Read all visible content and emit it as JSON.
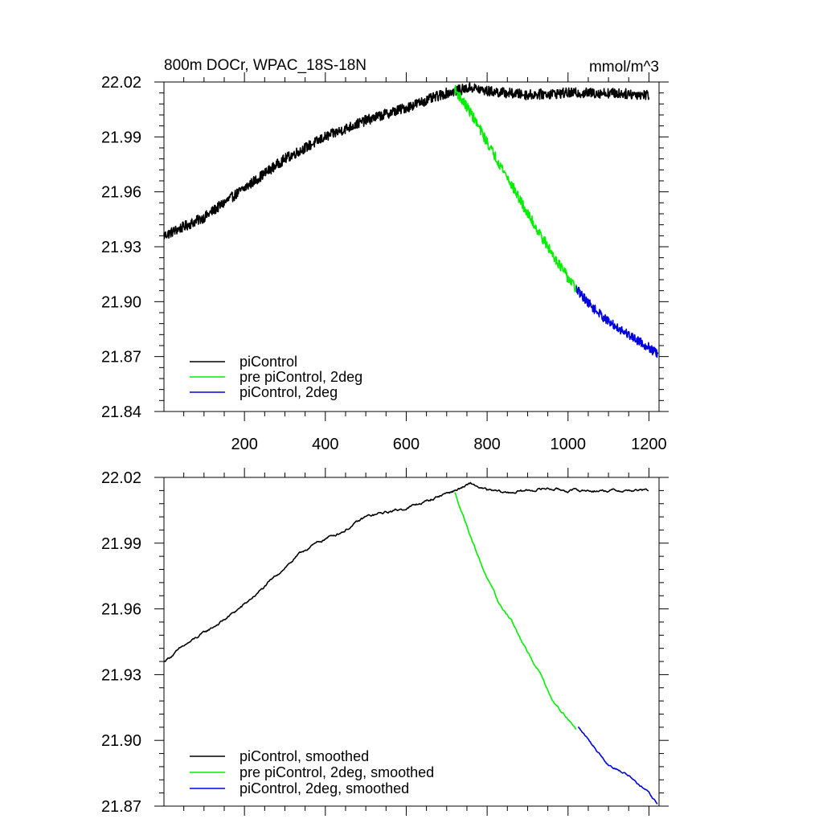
{
  "chart_data": [
    {
      "type": "line",
      "title": "800m DOCr, WPAC_18S-18N",
      "units": "mmol/m^3",
      "xlim": [
        1,
        1225
      ],
      "ylim": [
        21.84,
        22.02
      ],
      "xticks": [
        200,
        400,
        600,
        800,
        1000,
        1200
      ],
      "yticks": [
        21.84,
        21.87,
        21.9,
        21.93,
        21.96,
        21.99,
        22.02
      ],
      "ytick_labels": [
        "21.84",
        "21.87",
        "21.90",
        "21.93",
        "21.96",
        "21.99",
        "22.02"
      ],
      "series": [
        {
          "name": "piControl",
          "color": "#000000",
          "x_range": [
            1,
            1200
          ],
          "anchors": [
            [
              1,
              21.936
            ],
            [
              100,
              21.946
            ],
            [
              200,
              21.962
            ],
            [
              300,
              21.978
            ],
            [
              400,
              21.99
            ],
            [
              500,
              21.999
            ],
            [
              600,
              22.006
            ],
            [
              700,
              22.014
            ],
            [
              760,
              22.017
            ],
            [
              800,
              22.015
            ],
            [
              900,
              22.013
            ],
            [
              1000,
              22.014
            ],
            [
              1100,
              22.014
            ],
            [
              1200,
              22.013
            ]
          ],
          "noise": 0.0028
        },
        {
          "name": "pre piControl, 2deg",
          "color": "#00ee00",
          "x_range": [
            720,
            1020
          ],
          "anchors": [
            [
              720,
              22.016
            ],
            [
              760,
              22.003
            ],
            [
              800,
              21.987
            ],
            [
              850,
              21.968
            ],
            [
              900,
              21.948
            ],
            [
              950,
              21.93
            ],
            [
              1000,
              21.913
            ],
            [
              1020,
              21.907
            ]
          ],
          "noise": 0.0028
        },
        {
          "name": "piControl, 2deg",
          "color": "#0000dd",
          "x_range": [
            1020,
            1222
          ],
          "anchors": [
            [
              1020,
              21.907
            ],
            [
              1060,
              21.897
            ],
            [
              1100,
              21.889
            ],
            [
              1150,
              21.882
            ],
            [
              1200,
              21.875
            ],
            [
              1222,
              21.871
            ]
          ],
          "noise": 0.0025
        }
      ],
      "legend": {
        "position": "bottom-left",
        "entries": [
          {
            "label": "piControl",
            "color": "#000000"
          },
          {
            "label": "pre piControl, 2deg",
            "color": "#00ee00"
          },
          {
            "label": "piControl, 2deg",
            "color": "#0000dd"
          }
        ]
      }
    },
    {
      "type": "line",
      "title": "",
      "xlim": [
        1,
        1225
      ],
      "ylim": [
        21.87,
        22.02
      ],
      "xticks": [
        200,
        400,
        600,
        800,
        1000,
        1200
      ],
      "yticks": [
        21.87,
        21.9,
        21.93,
        21.96,
        21.99,
        22.02
      ],
      "ytick_labels": [
        "21.87",
        "21.90",
        "21.93",
        "21.96",
        "21.99",
        "22.02"
      ],
      "series": [
        {
          "name": "piControl, smoothed",
          "color": "#000000",
          "x_range": [
            1,
            1200
          ],
          "anchors": [
            [
              1,
              21.936
            ],
            [
              50,
              21.943
            ],
            [
              100,
              21.949
            ],
            [
              150,
              21.955
            ],
            [
              200,
              21.962
            ],
            [
              250,
              21.97
            ],
            [
              300,
              21.979
            ],
            [
              350,
              21.987
            ],
            [
              400,
              21.992
            ],
            [
              450,
              21.996
            ],
            [
              500,
              22.002
            ],
            [
              550,
              22.004
            ],
            [
              600,
              22.006
            ],
            [
              650,
              22.009
            ],
            [
              700,
              22.013
            ],
            [
              720,
              22.014
            ],
            [
              760,
              22.017
            ],
            [
              800,
              22.014
            ],
            [
              850,
              22.013
            ],
            [
              900,
              22.014
            ],
            [
              950,
              22.015
            ],
            [
              1000,
              22.014
            ],
            [
              1050,
              22.014
            ],
            [
              1100,
              22.014
            ],
            [
              1150,
              22.014
            ],
            [
              1200,
              22.014
            ]
          ],
          "noise": 0.0007
        },
        {
          "name": "pre piControl, 2deg, smoothed",
          "color": "#00ee00",
          "x_range": [
            720,
            1020
          ],
          "anchors": [
            [
              720,
              22.013
            ],
            [
              740,
              22.003
            ],
            [
              760,
              21.993
            ],
            [
              780,
              21.983
            ],
            [
              800,
              21.974
            ],
            [
              830,
              21.962
            ],
            [
              860,
              21.955
            ],
            [
              880,
              21.947
            ],
            [
              900,
              21.94
            ],
            [
              930,
              21.931
            ],
            [
              960,
              21.919
            ],
            [
              1000,
              21.91
            ],
            [
              1020,
              21.905
            ]
          ],
          "noise": 0.0006
        },
        {
          "name": "piControl, 2deg, smoothed",
          "color": "#0000dd",
          "x_range": [
            1025,
            1222
          ],
          "anchors": [
            [
              1025,
              21.906
            ],
            [
              1060,
              21.898
            ],
            [
              1100,
              21.889
            ],
            [
              1150,
              21.884
            ],
            [
              1200,
              21.876
            ],
            [
              1222,
              21.871
            ]
          ],
          "noise": 0.0006
        }
      ],
      "legend": {
        "position": "bottom-left",
        "entries": [
          {
            "label": "piControl, smoothed",
            "color": "#000000"
          },
          {
            "label": "pre piControl, 2deg, smoothed",
            "color": "#00ee00"
          },
          {
            "label": "piControl, 2deg, smoothed",
            "color": "#0000dd"
          }
        ]
      }
    }
  ]
}
